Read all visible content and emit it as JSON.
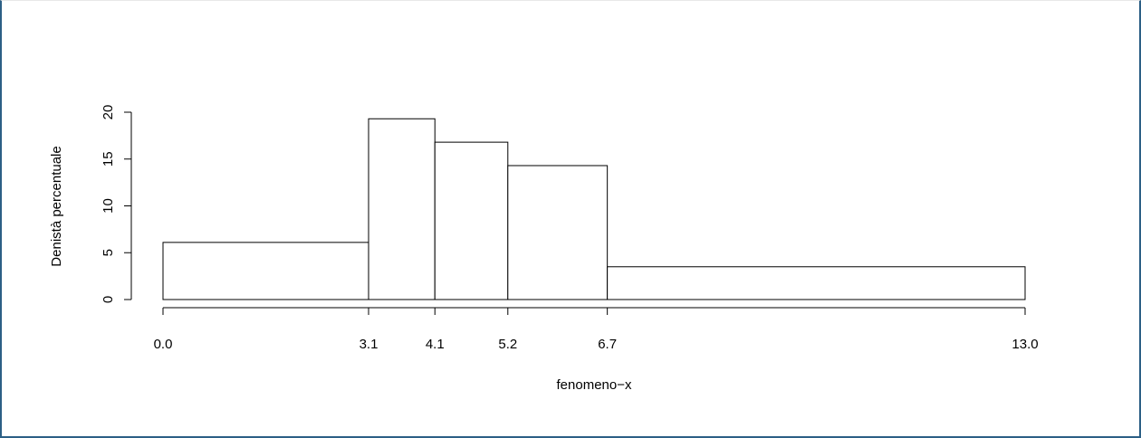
{
  "chart_data": {
    "type": "bar",
    "subtype": "histogram",
    "title": "",
    "xlabel": "fenomeno−x",
    "ylabel": "Denistà percentuale",
    "bins": [
      {
        "from": 0.0,
        "to": 3.1,
        "density": 6.1
      },
      {
        "from": 3.1,
        "to": 4.1,
        "density": 19.3
      },
      {
        "from": 4.1,
        "to": 5.2,
        "density": 16.8
      },
      {
        "from": 5.2,
        "to": 6.7,
        "density": 14.3
      },
      {
        "from": 6.7,
        "to": 13.0,
        "density": 3.5
      }
    ],
    "x_ticks": [
      "0.0",
      "3.1",
      "4.1",
      "5.2",
      "6.7",
      "13.0"
    ],
    "y_ticks": [
      "0",
      "5",
      "10",
      "15",
      "20"
    ],
    "xlim": [
      0,
      13
    ],
    "ylim": [
      0,
      20
    ],
    "grid": false,
    "legend": "none",
    "colors": {
      "bar_fill": "#ffffff",
      "bar_stroke": "#000000",
      "frame": "#2c5f85"
    }
  }
}
